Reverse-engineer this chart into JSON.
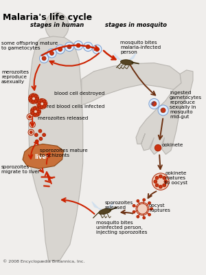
{
  "title": "Malaria's life cycle",
  "subtitle_human": "stages in human",
  "subtitle_mosquito": "stages in mosquito",
  "copyright": "© 2008 Encyclopædia Britannica, Inc.",
  "bg_color": "#f0eeec",
  "body_color": "#d8d5d0",
  "body_edge": "#b8b5b0",
  "liver_color": "#c8703a",
  "liver_edge": "#8b4513",
  "arrow_red": "#cc2200",
  "arrow_brown": "#6b2f10",
  "cell_red": "#cc3311",
  "cell_outline": "#aa2200",
  "cell_light": "#f0d0c0",
  "cell_blue": "#ddeeff",
  "cell_blue_edge": "#7799cc",
  "mosq_color": "#554422",
  "mosq_edge": "#332200",
  "title_fontsize": 9,
  "subtitle_fontsize": 6,
  "label_fontsize": 5.2,
  "copyright_fontsize": 4.5,
  "labels": {
    "gametocytes": "some offspring mature\nto gametocytes",
    "merozoites_reproduce": "merozoites\nreproduce\nasexually",
    "blood_cell_destroyed": "blood cell destroyed",
    "rbc_infected": "red blood cells infected",
    "merozoites_released": "merozoites released",
    "liver": "liver",
    "sporozoites_mature": "sporozoites mature\nto schizonts",
    "sporozoites_migrate": "sporozoites\nmigrate to liver",
    "sporozoites_released": "sporozoites\nreleased",
    "mosquito_bites_infected": "mosquito bites\nmalaria-infected\nperson",
    "ingested_gametocytes": "ingested\ngametocytes\nreproduce\nsexually in\nmosquito\nmid-gut",
    "ookinete": "ookinete",
    "ookinete_matures": "ookinete\nmatures\nto oocyst",
    "oocyst_ruptures": "oocyst\nruptures",
    "mosquito_bites_uninfected": "mosquito bites\nuninfected person,\ninjecting sporozoites"
  }
}
